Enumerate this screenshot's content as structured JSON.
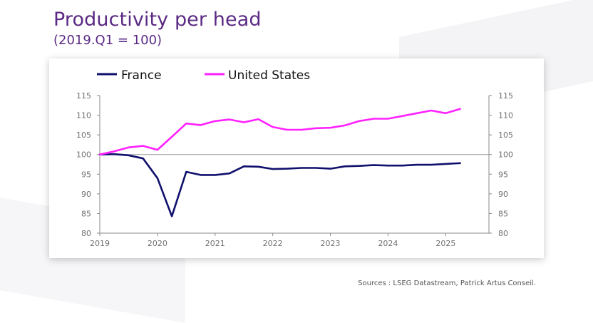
{
  "header": {
    "title": "Productivity per head",
    "subtitle": "(2019.Q1 = 100)"
  },
  "footer": {
    "source": "Sources : LSEG Datastream, Patrick Artus Conseil."
  },
  "colors": {
    "france": "#10106e",
    "united_states": "#ff22ff",
    "title": "#5b2a84",
    "axis": "#8a8a8a",
    "baseline": "#9a9a9a"
  },
  "chart_data": {
    "type": "line",
    "title": "",
    "xlabel": "",
    "ylabel": "",
    "ylim": [
      80,
      115
    ],
    "yticks": [
      80,
      85,
      90,
      95,
      100,
      105,
      110,
      115
    ],
    "ytick_labels": [
      "80",
      "85",
      "90",
      "95",
      "100",
      "105",
      "110",
      "115"
    ],
    "xlim": [
      2019.0,
      2025.75
    ],
    "xticks": [
      2019,
      2020,
      2021,
      2022,
      2023,
      2024,
      2025
    ],
    "xtick_labels": [
      "2019",
      "2020",
      "2021",
      "2022",
      "2023",
      "2024",
      "2025"
    ],
    "secondary_y_axis": true,
    "grid": false,
    "reference_line": 100,
    "legend_position": "top",
    "x": [
      2019.0,
      2019.25,
      2019.5,
      2019.75,
      2020.0,
      2020.25,
      2020.5,
      2020.75,
      2021.0,
      2021.25,
      2021.5,
      2021.75,
      2022.0,
      2022.25,
      2022.5,
      2022.75,
      2023.0,
      2023.25,
      2023.5,
      2023.75,
      2024.0,
      2024.25,
      2024.5,
      2024.75,
      2025.0,
      2025.25
    ],
    "series": [
      {
        "name": "France",
        "values": [
          100.0,
          100.1,
          99.8,
          99.0,
          94.0,
          84.3,
          95.6,
          94.8,
          94.8,
          95.2,
          97.0,
          96.9,
          96.3,
          96.4,
          96.6,
          96.6,
          96.4,
          97.0,
          97.1,
          97.3,
          97.2,
          97.2,
          97.4,
          97.4,
          97.6,
          97.8
        ]
      },
      {
        "name": "United States",
        "values": [
          100.0,
          100.8,
          101.8,
          102.2,
          101.2,
          104.5,
          107.9,
          107.5,
          108.5,
          108.9,
          108.2,
          109.0,
          107.0,
          106.3,
          106.3,
          106.7,
          106.8,
          107.4,
          108.5,
          109.1,
          109.1,
          109.8,
          110.5,
          111.2,
          110.5,
          111.6
        ]
      }
    ]
  }
}
